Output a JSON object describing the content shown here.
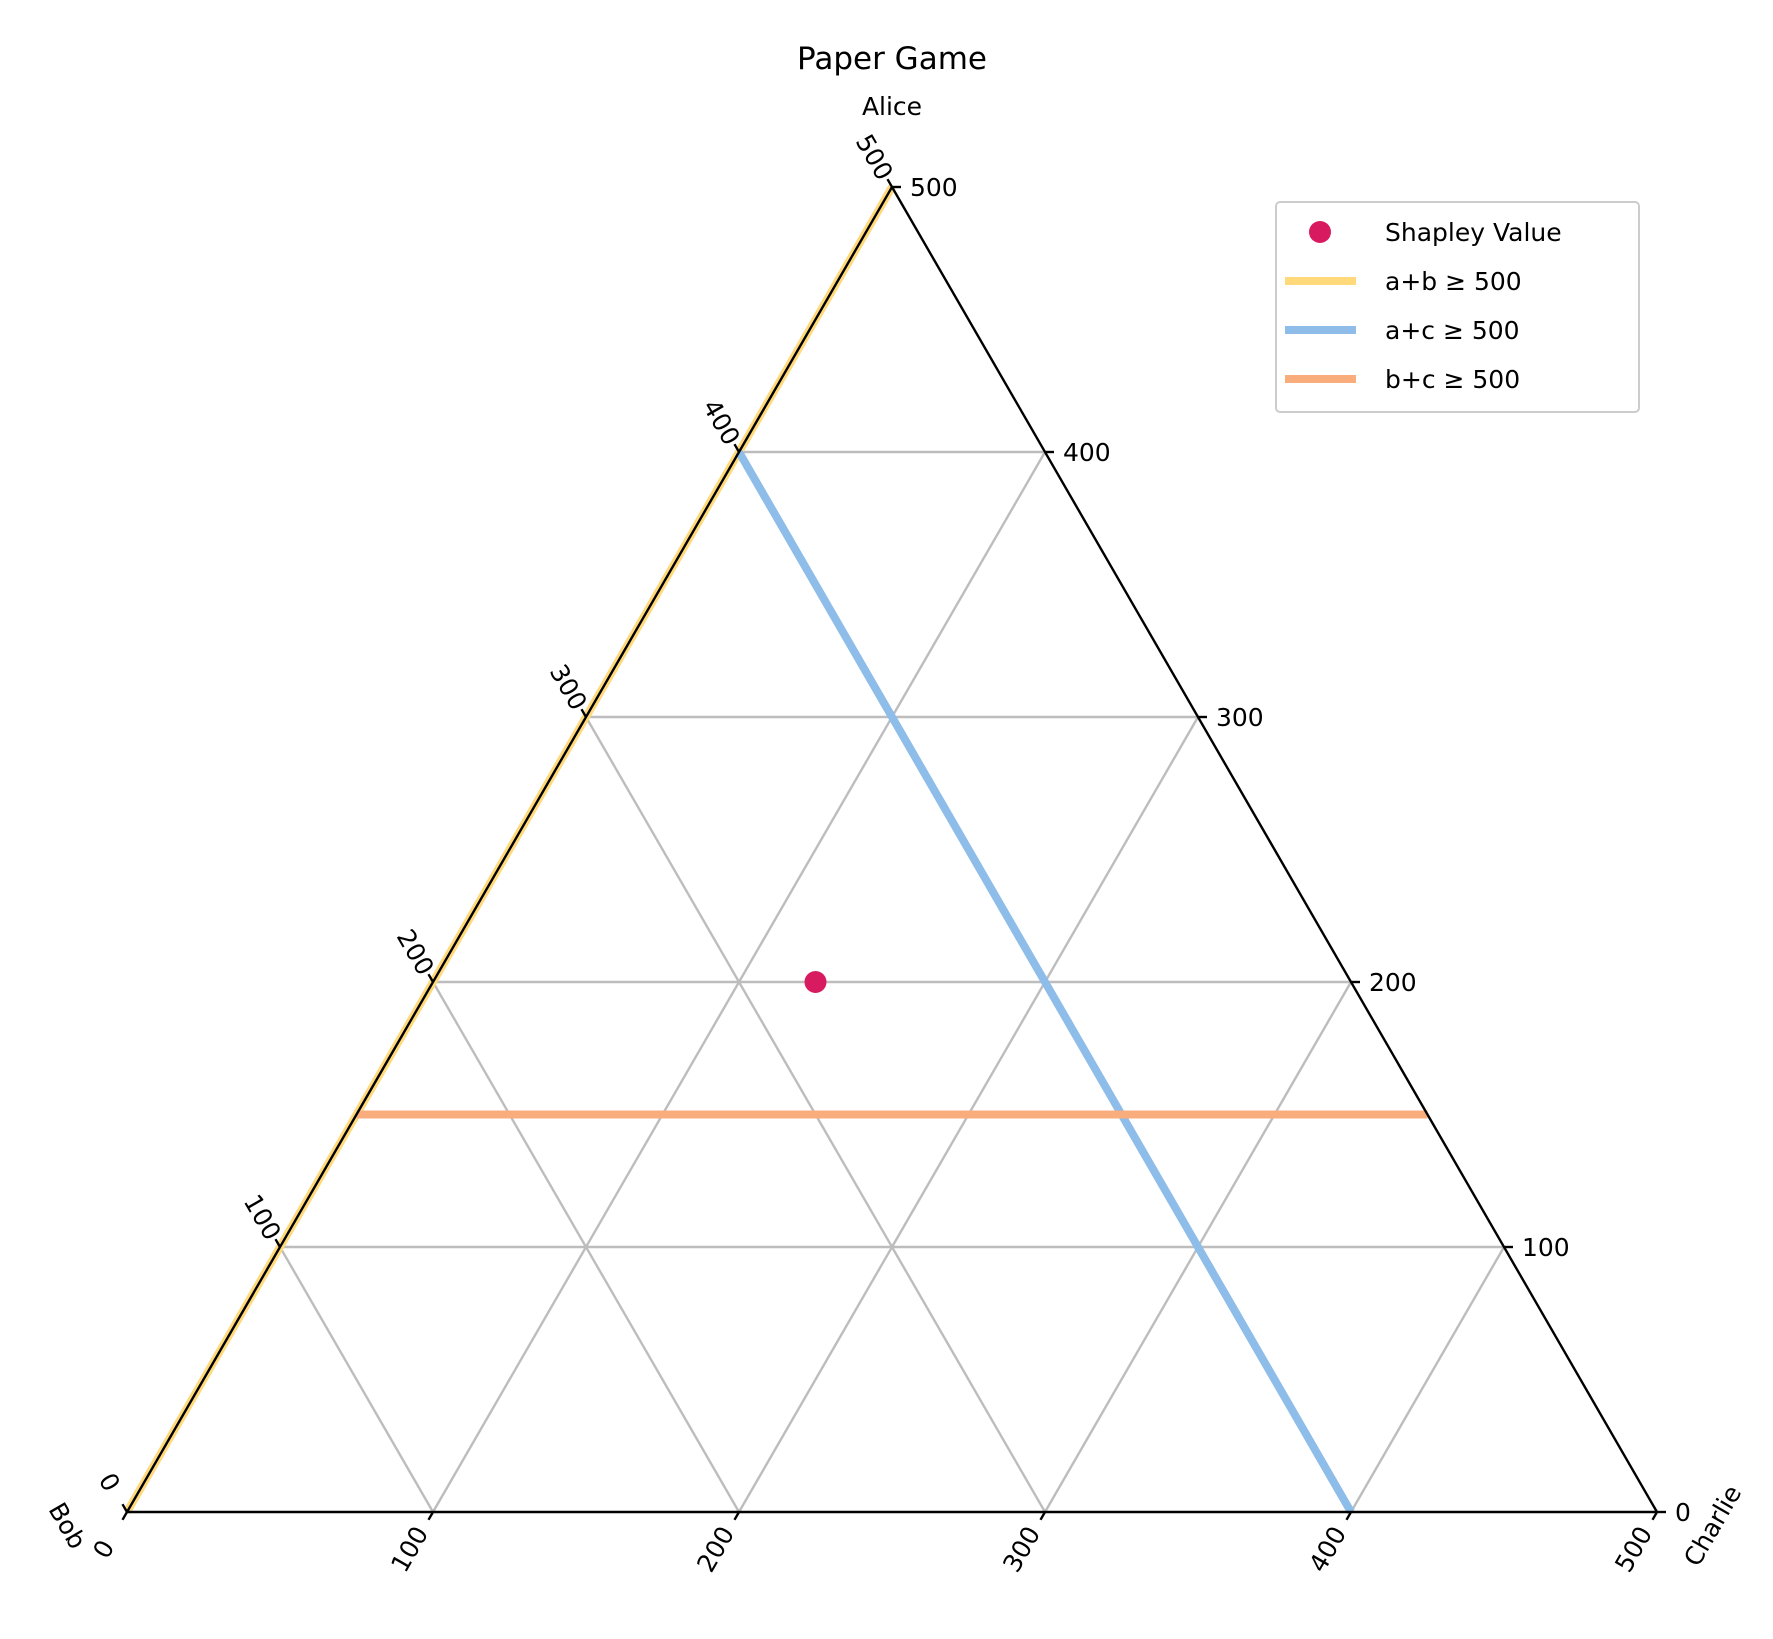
{
  "chart_data": {
    "type": "ternary",
    "title": "Paper Game",
    "axes": {
      "top": {
        "label": "Alice",
        "range": [
          0,
          500
        ]
      },
      "left": {
        "label": "Bob",
        "range": [
          0,
          500
        ]
      },
      "right": {
        "label": "Charlie",
        "range": [
          0,
          500
        ]
      }
    },
    "total": 500,
    "grid": true,
    "grid_step": 100,
    "ticks": [
      0,
      100,
      200,
      300,
      400,
      500
    ],
    "tick_labels": [
      "0",
      "100",
      "200",
      "300",
      "400",
      "500"
    ],
    "points": [
      {
        "name": "Shapley Value",
        "a": 200,
        "b": 175,
        "c": 125,
        "color": "#d81b60"
      }
    ],
    "lines": [
      {
        "name": "a+b ≥ 500",
        "color": "#ffd97a",
        "from": {
          "a": 500,
          "b": 0,
          "c": 0
        },
        "to": {
          "a": 0,
          "b": 500,
          "c": 0
        }
      },
      {
        "name": "a+c ≥ 500",
        "color": "#8dbde8",
        "from": {
          "a": 400,
          "b": 100,
          "c": 0
        },
        "to": {
          "a": 0,
          "b": 100,
          "c": 400
        }
      },
      {
        "name": "b+c ≥ 500",
        "color": "#f9ac7c",
        "from": {
          "a": 150,
          "b": 350,
          "c": 0
        },
        "to": {
          "a": 150,
          "b": 0,
          "c": 350
        }
      }
    ],
    "legend": {
      "position": "top-right",
      "entries": [
        {
          "label": "Shapley Value",
          "marker": "dot",
          "color": "#d81b60"
        },
        {
          "label": "a+b  ≥  500",
          "marker": "line",
          "color": "#ffd97a"
        },
        {
          "label": "a+c  ≥  500",
          "marker": "line",
          "color": "#8dbde8"
        },
        {
          "label": "b+c  ≥  500",
          "marker": "line",
          "color": "#f9ac7c"
        }
      ]
    }
  }
}
